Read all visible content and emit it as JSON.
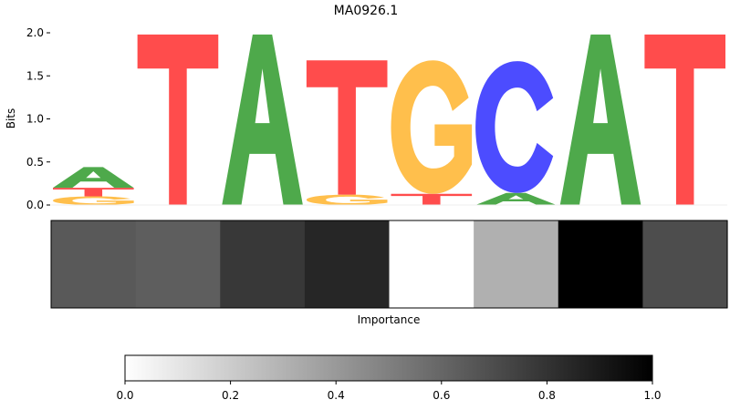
{
  "chart_data": [
    {
      "type": "sequence-logo",
      "title": "MA0926.1",
      "ylabel": "Bits",
      "ylim": [
        0,
        2.0
      ],
      "yticks": [
        0.0,
        0.5,
        1.0,
        1.5,
        2.0
      ],
      "ytick_labels": [
        "0.0",
        "0.5",
        "1.0",
        "1.5",
        "2.0"
      ],
      "positions": [
        [
          {
            "base": "G",
            "bits": 0.1
          },
          {
            "base": "T",
            "bits": 0.1
          },
          {
            "base": "A",
            "bits": 0.24
          }
        ],
        [
          {
            "base": "T",
            "bits": 1.98
          }
        ],
        [
          {
            "base": "A",
            "bits": 1.98
          }
        ],
        [
          {
            "base": "G",
            "bits": 0.12
          },
          {
            "base": "T",
            "bits": 1.56
          }
        ],
        [
          {
            "base": "T",
            "bits": 0.13
          },
          {
            "base": "G",
            "bits": 1.55
          }
        ],
        [
          {
            "base": "A",
            "bits": 0.14
          },
          {
            "base": "C",
            "bits": 1.53
          }
        ],
        [
          {
            "base": "A",
            "bits": 1.98
          }
        ],
        [
          {
            "base": "T",
            "bits": 1.98
          }
        ]
      ],
      "colors": {
        "A": "#4ea94b",
        "C": "#4c4cff",
        "G": "#ffbf4c",
        "T": "#ff4c4c"
      }
    },
    {
      "type": "heatmap",
      "xlabel": "Importance",
      "values": [
        0.65,
        0.63,
        0.78,
        0.85,
        0.0,
        0.31,
        1.0,
        0.7
      ],
      "colormap": "Greys",
      "colorbar": {
        "range": [
          0.0,
          1.0
        ],
        "ticks": [
          0.0,
          0.2,
          0.4,
          0.6,
          0.8,
          1.0
        ],
        "tick_labels": [
          "0.0",
          "0.2",
          "0.4",
          "0.6",
          "0.8",
          "1.0"
        ]
      }
    }
  ]
}
